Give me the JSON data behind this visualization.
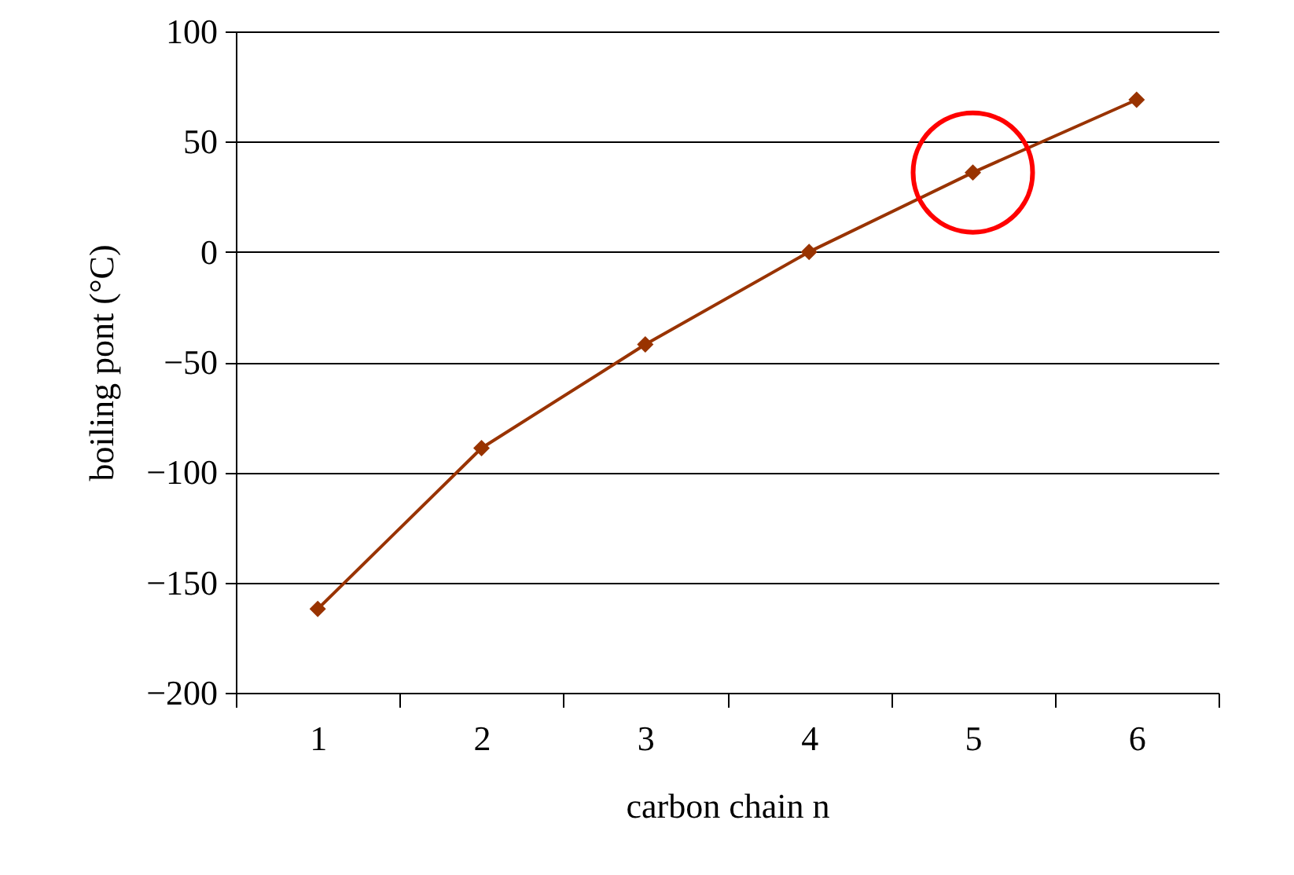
{
  "chart_data": {
    "type": "line",
    "xlabel": "carbon chain n",
    "ylabel": "boiling pont (°C)",
    "categories": [
      "1",
      "2",
      "3",
      "4",
      "5",
      "6"
    ],
    "series": [
      {
        "color": "#993300",
        "values": [
          -162,
          -89,
          -42,
          0,
          36,
          69
        ]
      }
    ],
    "ylim": [
      -200,
      100
    ],
    "yticks": [
      -200,
      -150,
      -100,
      -50,
      0,
      50,
      100
    ],
    "grid": "y",
    "marker": "diamond",
    "line_style": "solid"
  }
}
